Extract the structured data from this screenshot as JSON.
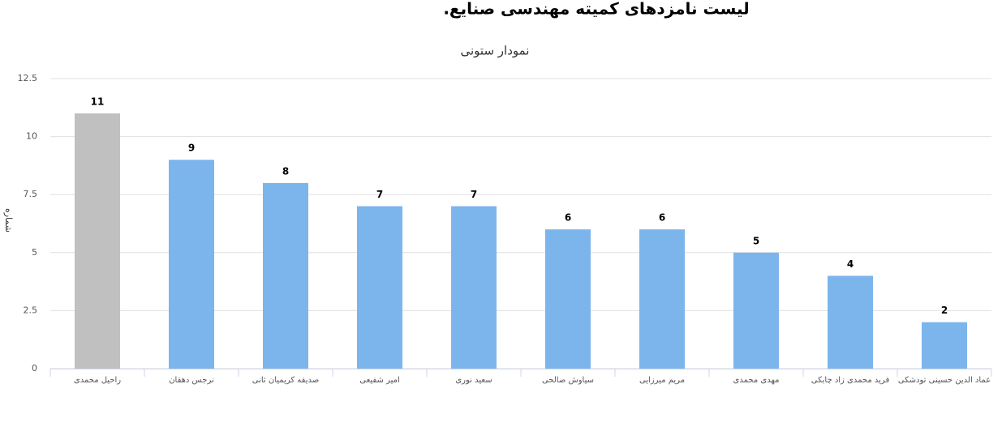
{
  "chart_data": {
    "type": "bar",
    "title": "لیست نامزدهای کمیته مهندسی صنایع.",
    "subtitle": "نمودار ستونی",
    "y_label": "شماره",
    "categories": [
      "راحیل محمدی",
      "نرجس دهقان",
      "صدیقه کریمیان ثانی",
      "امیر شفیعی",
      "سعید نوری",
      "سیاوش صالحی",
      "مریم میرزایی",
      "مهدی محمدی",
      "فرید محمدی زاد چابکی",
      "عماد الدین حسینی تودشکی"
    ],
    "values": [
      11,
      9,
      8,
      7,
      7,
      6,
      6,
      5,
      4,
      2
    ],
    "colors": [
      "#c0c0c0",
      "#7cb5ec",
      "#7cb5ec",
      "#7cb5ec",
      "#7cb5ec",
      "#7cb5ec",
      "#7cb5ec",
      "#7cb5ec",
      "#7cb5ec",
      "#7cb5ec"
    ],
    "ylim": [
      0,
      12.5
    ],
    "yticks": [
      0,
      2.5,
      5,
      7.5,
      10,
      12.5
    ],
    "grid": true
  }
}
